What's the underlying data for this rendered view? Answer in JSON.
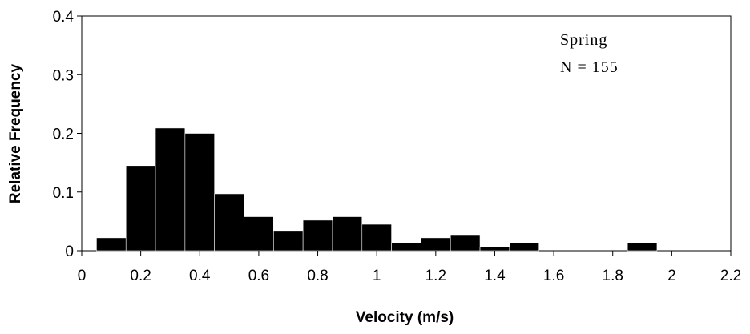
{
  "chart_data": {
    "type": "bar",
    "title": "",
    "xlabel": "Velocity (m/s)",
    "ylabel": "Relative Frequency",
    "xlim": [
      0,
      2.2
    ],
    "ylim": [
      0,
      0.4
    ],
    "xticks": [
      "0",
      "0.2",
      "0.4",
      "0.6",
      "0.8",
      "1",
      "1.2",
      "1.4",
      "1.6",
      "1.8",
      "2",
      "2.2"
    ],
    "yticks": [
      "0",
      "0.1",
      "0.2",
      "0.3",
      "0.4"
    ],
    "bin_width": 0.1,
    "bins": [
      {
        "x": 0.1,
        "value": 0.022
      },
      {
        "x": 0.2,
        "value": 0.145
      },
      {
        "x": 0.3,
        "value": 0.209
      },
      {
        "x": 0.4,
        "value": 0.2
      },
      {
        "x": 0.5,
        "value": 0.097
      },
      {
        "x": 0.6,
        "value": 0.058
      },
      {
        "x": 0.7,
        "value": 0.033
      },
      {
        "x": 0.8,
        "value": 0.052
      },
      {
        "x": 0.9,
        "value": 0.058
      },
      {
        "x": 1.0,
        "value": 0.045
      },
      {
        "x": 1.1,
        "value": 0.013
      },
      {
        "x": 1.2,
        "value": 0.022
      },
      {
        "x": 1.3,
        "value": 0.026
      },
      {
        "x": 1.4,
        "value": 0.006
      },
      {
        "x": 1.5,
        "value": 0.013
      },
      {
        "x": 1.9,
        "value": 0.013
      }
    ],
    "annotations": [
      "Spring",
      "N = 155"
    ],
    "grid": false,
    "bar_color": "#000000"
  }
}
